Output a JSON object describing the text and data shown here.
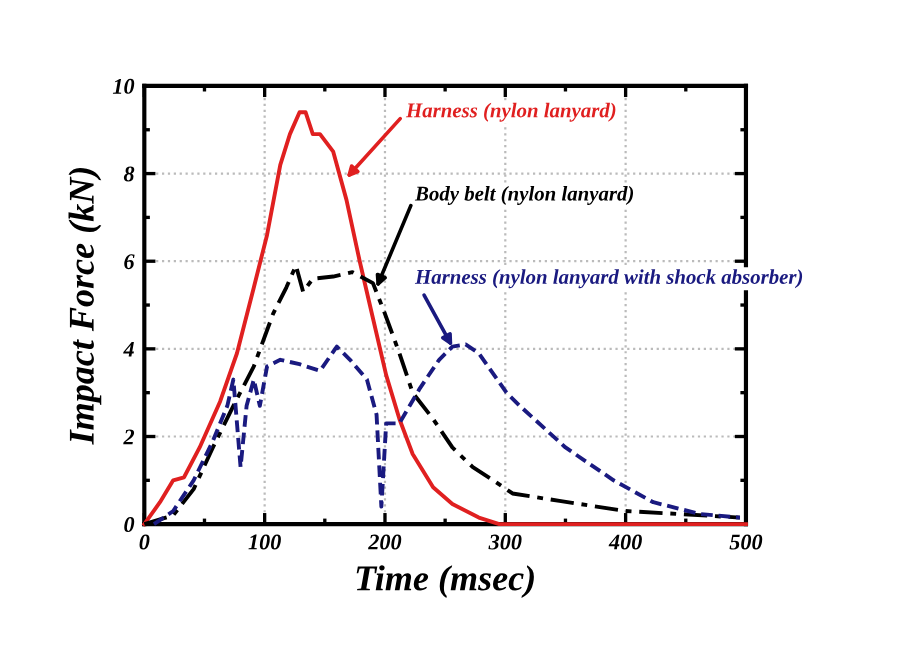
{
  "chart_data": {
    "type": "line",
    "xlabel": "Time (msec)",
    "ylabel": "Impact Force (kN)",
    "xlim": [
      0,
      500
    ],
    "ylim": [
      0,
      10
    ],
    "xticks": [
      0,
      100,
      200,
      300,
      400,
      500
    ],
    "yticks": [
      0,
      2,
      4,
      6,
      8,
      10
    ],
    "grid": true,
    "legend": false,
    "marker": "none",
    "series": [
      {
        "color": "#e02020",
        "line_style": "solid",
        "x": [
          0,
          13,
          24,
          33,
          46,
          63,
          77,
          91,
          102,
          113,
          121,
          129,
          134,
          140,
          146,
          157,
          168,
          179,
          190,
          201,
          212,
          223,
          240,
          256,
          278,
          295,
          350,
          400,
          450,
          500
        ],
        "values": [
          0,
          0.5,
          1.0,
          1.07,
          1.75,
          2.8,
          3.9,
          5.4,
          6.6,
          8.2,
          8.9,
          9.4,
          9.4,
          8.9,
          8.9,
          8.5,
          7.4,
          6.0,
          4.7,
          3.4,
          2.4,
          1.6,
          0.84,
          0.46,
          0.15,
          0,
          0,
          0,
          0,
          0
        ]
      },
      {
        "color": "#000000",
        "line_style": "dashdot",
        "x": [
          0,
          24,
          41,
          57,
          74,
          91,
          107,
          118,
          126,
          132,
          140,
          157,
          173,
          190,
          200,
          212,
          223,
          240,
          256,
          273,
          290,
          306,
          345,
          400,
          445,
          495
        ],
        "values": [
          0,
          0.2,
          0.8,
          1.75,
          2.7,
          3.6,
          4.8,
          5.4,
          5.9,
          5.3,
          5.6,
          5.65,
          5.75,
          5.5,
          4.8,
          3.9,
          3.0,
          2.4,
          1.75,
          1.3,
          1.0,
          0.7,
          0.53,
          0.3,
          0.23,
          0.15
        ]
      },
      {
        "color": "#1a1a80",
        "line_style": "dashed",
        "x": [
          8,
          24,
          41,
          57,
          69,
          74,
          80,
          85,
          91,
          96,
          102,
          113,
          129,
          146,
          160,
          171,
          185,
          193,
          197,
          201,
          212,
          229,
          245,
          256,
          267,
          278,
          301,
          312,
          350,
          390,
          423,
          462,
          495
        ],
        "values": [
          0,
          0.3,
          1.0,
          1.9,
          2.7,
          3.3,
          1.3,
          2.7,
          3.3,
          2.7,
          3.6,
          3.75,
          3.65,
          3.5,
          4.05,
          3.75,
          3.3,
          2.5,
          0.4,
          2.3,
          2.3,
          3.1,
          3.75,
          4.05,
          4.1,
          3.9,
          3.0,
          2.7,
          1.75,
          1.0,
          0.5,
          0.23,
          0.15
        ]
      }
    ],
    "annotations": [
      {
        "text": "Harness (nylon lanyard)",
        "x": 168,
        "y": 7.9
      },
      {
        "text": "Body belt (nylon lanyard)",
        "x": 193,
        "y": 5.4
      },
      {
        "text": "Harness (nylon lanyard with shock absorber)",
        "x": 256,
        "y": 4.05
      }
    ]
  }
}
